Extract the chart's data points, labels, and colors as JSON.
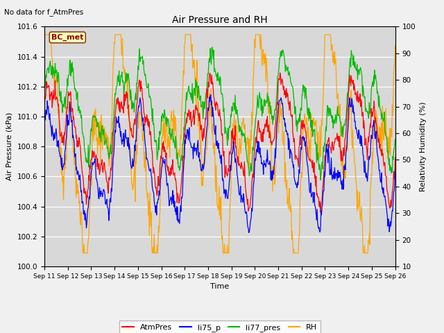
{
  "title": "Air Pressure and RH",
  "top_left_text": "No data for f_AtmPres",
  "station_label": "BC_met",
  "ylabel_left": "Air Pressure (kPa)",
  "ylabel_right": "Relativity Humidity (%)",
  "xlabel": "Time",
  "ylim_left": [
    100.0,
    101.6
  ],
  "ylim_right": [
    10,
    100
  ],
  "yticks_left": [
    100.0,
    100.2,
    100.4,
    100.6,
    100.8,
    101.0,
    101.2,
    101.4,
    101.6
  ],
  "yticks_right": [
    10,
    20,
    30,
    40,
    50,
    60,
    70,
    80,
    90,
    100
  ],
  "x_tick_labels": [
    "Sep 11",
    "Sep 12",
    "Sep 13",
    "Sep 14",
    "Sep 15",
    "Sep 16",
    "Sep 17",
    "Sep 18",
    "Sep 19",
    "Sep 20",
    "Sep 21",
    "Sep 22",
    "Sep 23",
    "Sep 24",
    "Sep 25",
    "Sep 26"
  ],
  "colors": {
    "AtmPres": "#ff0000",
    "li75_p": "#0000ff",
    "li77_pres": "#00bb00",
    "RH": "#ffa500"
  },
  "legend_labels": [
    "AtmPres",
    "li75_p",
    "li77_pres",
    "RH"
  ],
  "plot_bg_color": "#d8d8d8",
  "fig_bg_color": "#f0f0f0",
  "grid_color": "#ffffff",
  "station_box_face": "#ffffbb",
  "station_box_edge": "#8B4513",
  "station_text_color": "#8B0000"
}
